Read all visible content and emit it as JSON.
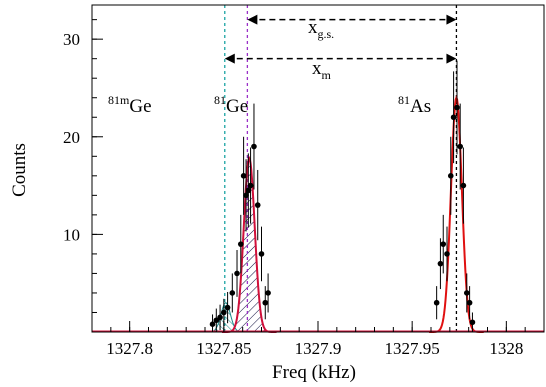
{
  "chart_data": {
    "type": "scatter",
    "xlabel": "Freq (kHz)",
    "ylabel": "Counts",
    "xlim": [
      1327.78,
      1328.02
    ],
    "ylim": [
      0,
      33.5
    ],
    "x_ticks": [
      {
        "value": 1327.8,
        "label": "1327.8"
      },
      {
        "value": 1327.85,
        "label": "1327.85"
      },
      {
        "value": 1327.9,
        "label": "1327.9"
      },
      {
        "value": 1327.95,
        "label": "1327.95"
      },
      {
        "value": 1328.0,
        "label": "1328"
      }
    ],
    "y_ticks": [
      {
        "value": 10,
        "label": "10"
      },
      {
        "value": 20,
        "label": "20"
      },
      {
        "value": 30,
        "label": "30"
      }
    ],
    "vlines": [
      {
        "x": 1327.8505,
        "color": "#1aa3a3",
        "name": "81mGe"
      },
      {
        "x": 1327.8625,
        "color": "#9b30c8",
        "name": "81Ge"
      },
      {
        "x": 1327.9735,
        "color": "#000000",
        "name": "81As"
      }
    ],
    "labels": {
      "ge81m": {
        "sup": "81m",
        "base": "Ge"
      },
      "ge81": {
        "sup": "81",
        "base": "Ge"
      },
      "as81": {
        "sup": "81",
        "base": "As"
      },
      "xgs": {
        "base": "x",
        "sub": "g.s."
      },
      "xm": {
        "base": "x",
        "sub": "m"
      }
    },
    "arrows": {
      "xgs": {
        "from": 1327.8625,
        "to": 1327.9735,
        "y": 32.0
      },
      "xm": {
        "from": 1327.8505,
        "to": 1327.9735,
        "y": 28.0
      }
    },
    "fit_curves": [
      {
        "center": 1327.8635,
        "amplitude": 17.8,
        "sigma": 0.0029,
        "color": "#d0103a"
      },
      {
        "center": 1327.9735,
        "amplitude": 24.0,
        "sigma": 0.0029,
        "color": "#e01010"
      }
    ],
    "hatched_components": [
      {
        "center": 1327.8635,
        "amplitude": 17.8,
        "sigma": 0.0029,
        "color": "#101040"
      },
      {
        "center": 1327.851,
        "amplitude": 3.0,
        "sigma": 0.0025,
        "color": "#1a8a8a"
      }
    ],
    "points": [
      {
        "x": 1327.844,
        "y": 0.8,
        "err": 1.0
      },
      {
        "x": 1327.846,
        "y": 1.2,
        "err": 1.2
      },
      {
        "x": 1327.848,
        "y": 1.5,
        "err": 1.3
      },
      {
        "x": 1327.85,
        "y": 2.0,
        "err": 1.4
      },
      {
        "x": 1327.852,
        "y": 2.5,
        "err": 1.6
      },
      {
        "x": 1327.8545,
        "y": 4.0,
        "err": 2.0
      },
      {
        "x": 1327.857,
        "y": 6.0,
        "err": 2.4
      },
      {
        "x": 1327.859,
        "y": 9.0,
        "err": 3.0
      },
      {
        "x": 1327.8605,
        "y": 16.0,
        "err": 4.0
      },
      {
        "x": 1327.8618,
        "y": 14.0,
        "err": 3.7
      },
      {
        "x": 1327.863,
        "y": 14.5,
        "err": 3.8
      },
      {
        "x": 1327.8642,
        "y": 15.0,
        "err": 3.9
      },
      {
        "x": 1327.866,
        "y": 19.0,
        "err": 4.4
      },
      {
        "x": 1327.868,
        "y": 13.0,
        "err": 3.6
      },
      {
        "x": 1327.87,
        "y": 8.0,
        "err": 2.8
      },
      {
        "x": 1327.872,
        "y": 3.0,
        "err": 1.7
      },
      {
        "x": 1327.8735,
        "y": 4.0,
        "err": 2.0
      },
      {
        "x": 1327.963,
        "y": 3.0,
        "err": 1.7
      },
      {
        "x": 1327.965,
        "y": 7.0,
        "err": 2.6
      },
      {
        "x": 1327.9665,
        "y": 9.0,
        "err": 3.0
      },
      {
        "x": 1327.9685,
        "y": 8.0,
        "err": 2.8
      },
      {
        "x": 1327.9705,
        "y": 16.0,
        "err": 4.0
      },
      {
        "x": 1327.972,
        "y": 22.0,
        "err": 4.7
      },
      {
        "x": 1327.9738,
        "y": 23.0,
        "err": 4.8
      },
      {
        "x": 1327.9755,
        "y": 19.0,
        "err": 4.4
      },
      {
        "x": 1327.9772,
        "y": 15.0,
        "err": 3.9
      },
      {
        "x": 1327.979,
        "y": 4.0,
        "err": 2.0
      },
      {
        "x": 1327.9805,
        "y": 3.0,
        "err": 1.7
      },
      {
        "x": 1327.982,
        "y": 1.0,
        "err": 1.0
      }
    ]
  }
}
